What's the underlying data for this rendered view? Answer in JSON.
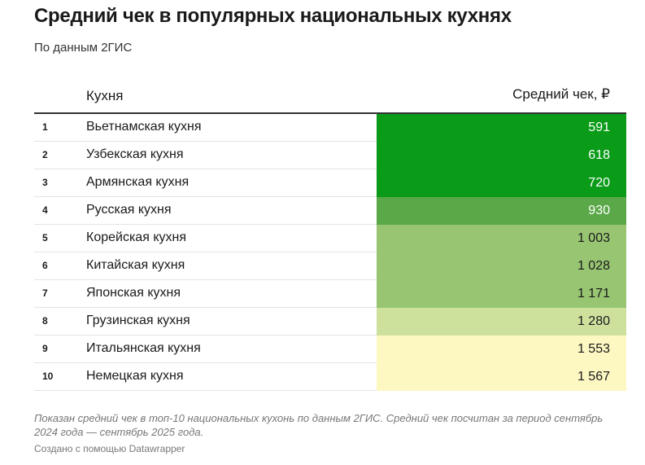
{
  "header": {
    "title": "Средний чек в популярных национальных кухнях",
    "subtitle": "По данным 2ГИС"
  },
  "table": {
    "columns": [
      "Кухня",
      "Средний чек, ₽"
    ],
    "rows": [
      {
        "rank": "1",
        "cuisine": "Вьетнамская кухня",
        "check": "591",
        "fill": "#0a9b18",
        "text_color": "#ffffff"
      },
      {
        "rank": "2",
        "cuisine": "Узбекская кухня",
        "check": "618",
        "fill": "#0a9b18",
        "text_color": "#ffffff"
      },
      {
        "rank": "3",
        "cuisine": "Армянская кухня",
        "check": "720",
        "fill": "#0a9b18",
        "text_color": "#ffffff"
      },
      {
        "rank": "4",
        "cuisine": "Русская кухня",
        "check": "930",
        "fill": "#5aa848",
        "text_color": "#ffffff"
      },
      {
        "rank": "5",
        "cuisine": "Корейская кухня",
        "check": "1 003",
        "fill": "#98c571",
        "text_color": "#1a1a1a"
      },
      {
        "rank": "6",
        "cuisine": "Китайская кухня",
        "check": "1 028",
        "fill": "#98c571",
        "text_color": "#1a1a1a"
      },
      {
        "rank": "7",
        "cuisine": "Японская кухня",
        "check": "1 171",
        "fill": "#98c571",
        "text_color": "#1a1a1a"
      },
      {
        "rank": "8",
        "cuisine": "Грузинская кухня",
        "check": "1 280",
        "fill": "#cde19d",
        "text_color": "#1a1a1a"
      },
      {
        "rank": "9",
        "cuisine": "Итальянская кухня",
        "check": "1 553",
        "fill": "#fdf8c2",
        "text_color": "#1a1a1a"
      },
      {
        "rank": "10",
        "cuisine": "Немецкая кухня",
        "check": "1 567",
        "fill": "#fdf8c2",
        "text_color": "#1a1a1a"
      }
    ]
  },
  "footer": {
    "note": "Показан средний чек в топ-10 национальных кухонь по данным 2ГИС. Средний чек посчитан за период сентябрь 2024 года — сентябрь 2025 года.",
    "credit": "Создано с помощью Datawrapper"
  }
}
